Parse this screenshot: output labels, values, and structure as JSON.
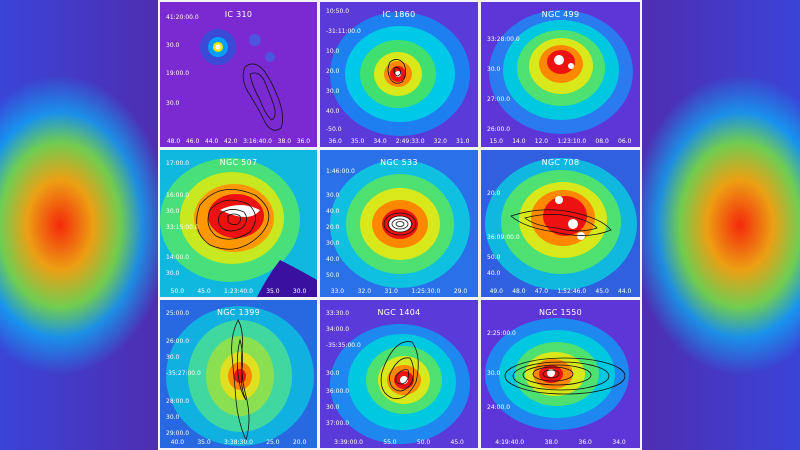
{
  "panels": [
    {
      "title": "IC 310",
      "y_ticks": [
        "41:20:00.0",
        "30.0",
        "19:00.0",
        "30.0"
      ],
      "x_ticks": [
        "48.0",
        "46.0",
        "44.0",
        "42.0",
        "3:16:40.0",
        "38.0",
        "36.0"
      ]
    },
    {
      "title": "IC 1860",
      "y_ticks": [
        "10:50.0",
        "-31:11:00.0",
        "10.0",
        "20.0",
        "30.0",
        "40.0",
        "-50.0"
      ],
      "x_ticks": [
        "36.0",
        "35.0",
        "34.0",
        "2:49:33.0",
        "32.0",
        "31.0"
      ]
    },
    {
      "title": "NGC 499",
      "y_ticks": [
        "33:28:00.0",
        "30.0",
        "27:00.0",
        "26:00.0"
      ],
      "x_ticks": [
        "15.0",
        "14.0",
        "12.0",
        "1:23:10.0",
        "08.0",
        "06.0"
      ]
    },
    {
      "title": "NGC 507",
      "y_ticks": [
        "17:00.0",
        "16:00.0",
        "30.0",
        "33:15:00.0",
        "14:00.0",
        "30.0"
      ],
      "x_ticks": [
        "50.0",
        "45.0",
        "1:23:40.0",
        "35.0",
        "30.0"
      ]
    },
    {
      "title": "NGC 533",
      "y_ticks": [
        "1:46:00.0",
        "30.0",
        "40.0",
        "20.0",
        "30.0",
        "40.0",
        "50.0"
      ],
      "x_ticks": [
        "33.0",
        "32.0",
        "31.0",
        "1:25:30.0",
        "29.0"
      ]
    },
    {
      "title": "NGC 708",
      "y_ticks": [
        "20.0",
        "36:09:00.0",
        "50.0",
        "40.0"
      ],
      "x_ticks": [
        "49.0",
        "48.0",
        "47.0",
        "1:52:46.0",
        "45.0",
        "44.0"
      ]
    },
    {
      "title": "NGC 1399",
      "y_ticks": [
        "25:00.0",
        "26:00.0",
        "30.0",
        "-35:27:00.0",
        "28:00.0",
        "30.0",
        "29:00.0"
      ],
      "x_ticks": [
        "40.0",
        "35.0",
        "3:38:30.0",
        "25.0",
        "20.0"
      ]
    },
    {
      "title": "NGC 1404",
      "y_ticks": [
        "33:30.0",
        "34:00.0",
        "-35:35:00.0",
        "30.0",
        "36:00.0",
        "30.0",
        "37:00.0"
      ],
      "x_ticks": [
        "3:39:00.0",
        "55.0",
        "50.0",
        "45.0"
      ]
    },
    {
      "title": "NGC 1550",
      "y_ticks": [
        "2:25:00.0",
        "30.0",
        "24:00.0"
      ],
      "x_ticks": [
        "4:19:40.0",
        "38.0",
        "36.0",
        "34.0"
      ]
    }
  ]
}
